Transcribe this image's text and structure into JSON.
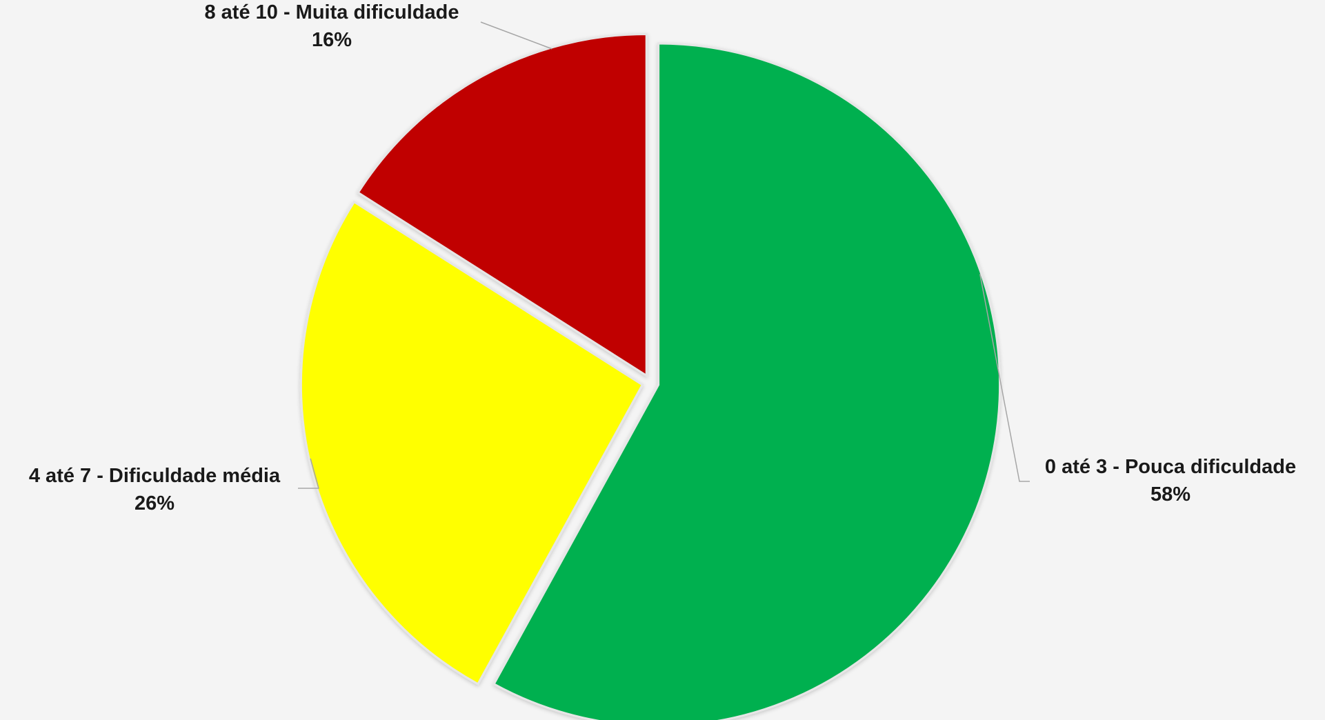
{
  "chart_data": {
    "type": "pie",
    "slices": [
      {
        "category": "0 até 3 - Pouca dificuldade",
        "value": 58,
        "value_label": "58%",
        "color": "#00b050"
      },
      {
        "category": "4 até 7 - Dificuldade média",
        "value": 26,
        "value_label": "26%",
        "color": "#ffff00"
      },
      {
        "category": "8 até 10 - Muita dificuldade",
        "value": 16,
        "value_label": "16%",
        "color": "#c00000"
      }
    ],
    "start": "12 o'clock",
    "direction": "clockwise",
    "exploded": true,
    "legend": "none",
    "background": "#f4f4f4"
  }
}
